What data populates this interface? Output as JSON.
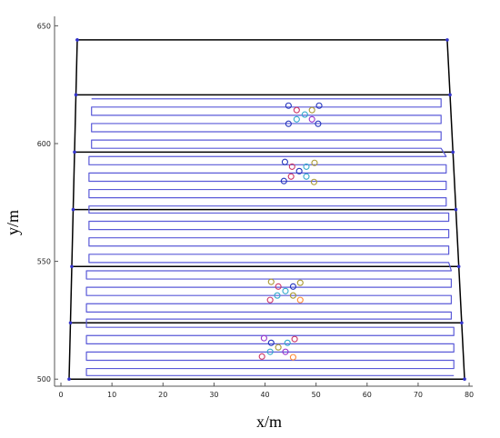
{
  "chart_data": {
    "type": "line",
    "xlabel": "x/m",
    "ylabel": "y/m",
    "xlim": [
      -1.25,
      80.7
    ],
    "ylim": [
      497,
      654
    ],
    "xticks": [
      0,
      10,
      20,
      30,
      40,
      50,
      60,
      70,
      80
    ],
    "yticks": [
      500,
      550,
      600,
      650
    ],
    "series": [
      {
        "kind": "line",
        "color": "#000000",
        "marker_color": "#3333cc",
        "x": [
          3.2,
          75.7,
          79.1,
          1.6,
          3.2
        ],
        "y": [
          644,
          644,
          500,
          500,
          644
        ]
      },
      {
        "kind": "line",
        "color": "#000000",
        "marker_color": "#3333cc",
        "x": [
          2.94,
          76.25
        ],
        "y": [
          620.7,
          620.7
        ]
      },
      {
        "kind": "line",
        "color": "#000000",
        "marker_color": "#3333cc",
        "x": [
          2.67,
          76.82
        ],
        "y": [
          596.4,
          596.4
        ]
      },
      {
        "kind": "line",
        "color": "#000000",
        "marker_color": "#3333cc",
        "x": [
          2.4,
          77.4
        ],
        "y": [
          572,
          572
        ]
      },
      {
        "kind": "line",
        "color": "#000000",
        "marker_color": "#3333cc",
        "x": [
          2.13,
          77.97
        ],
        "y": [
          547.8,
          547.8
        ]
      },
      {
        "kind": "line",
        "color": "#000000",
        "marker_color": "#3333cc",
        "x": [
          1.87,
          78.54
        ],
        "y": [
          523.9,
          523.9
        ]
      },
      {
        "kind": "line",
        "color": "#5a5ad8",
        "x": [
          6,
          74.5,
          74.5,
          6,
          6,
          74.5,
          74.5,
          6,
          6,
          74.5,
          74.5,
          6,
          6,
          74.5,
          75.5,
          5.5,
          5.5,
          75.5,
          75.5,
          5.5,
          5.5,
          75.5,
          75.5,
          5.5,
          5.5,
          75.5,
          75.5,
          5.5,
          5.5,
          76,
          76,
          5.5,
          5.5,
          76,
          76,
          5.5,
          5.5,
          76,
          76,
          5.5,
          5.5,
          76,
          76.5,
          5,
          5,
          76.5,
          76.5,
          5,
          5,
          76.5,
          76.5,
          5,
          5,
          76.5,
          76.5,
          5,
          5,
          77,
          77,
          5,
          5,
          77,
          77,
          5,
          5,
          77,
          77,
          5,
          5,
          77
        ],
        "y": [
          619,
          619,
          615.5,
          615.5,
          612,
          612,
          608.5,
          608.5,
          605,
          605,
          601.5,
          601.5,
          598,
          598,
          594.5,
          594.5,
          591,
          591,
          587.5,
          587.5,
          584,
          584,
          580.5,
          580.5,
          577,
          577,
          573.5,
          573.5,
          570.5,
          570.5,
          567,
          567,
          563.5,
          563.5,
          560,
          560,
          556.5,
          556.5,
          553,
          553,
          549.5,
          549.5,
          546,
          546,
          542.5,
          542.5,
          539,
          539,
          535.5,
          535.5,
          532,
          532,
          528.5,
          528.5,
          525.5,
          525.5,
          522,
          522,
          518.5,
          518.5,
          515,
          515,
          511.5,
          511.5,
          508,
          508,
          504.5,
          504.5,
          501.5,
          501.5
        ]
      },
      {
        "kind": "points",
        "x": [
          44.6,
          46.2,
          47.8,
          49.2,
          50.6,
          44.6,
          46.2,
          49.2,
          50.4,
          43.9,
          45.3,
          46.7,
          48.1,
          49.7,
          43.7,
          45.1,
          48.1,
          49.6,
          41.2,
          42.6,
          44.0,
          45.5,
          46.9,
          41.0,
          42.4,
          45.5,
          46.9,
          39.8,
          41.2,
          42.6,
          44.4,
          45.8,
          39.4,
          41.0,
          44.0,
          45.5
        ],
        "y": [
          616.1,
          614.2,
          612.3,
          614.2,
          616.1,
          608.4,
          610.3,
          610.3,
          608.4,
          592.2,
          590.2,
          588.3,
          590.2,
          591.8,
          584.1,
          586.0,
          586.0,
          583.7,
          541.3,
          539.3,
          537.4,
          539.3,
          540.9,
          533.6,
          535.5,
          535.5,
          533.6,
          517.4,
          515.4,
          513.5,
          515.4,
          517.0,
          509.6,
          511.6,
          511.6,
          509.3
        ],
        "colors": [
          "#2233bb",
          "#cc3366",
          "#33aacc",
          "#aa9933",
          "#2233bb",
          "#2233bb",
          "#33aacc",
          "#9933cc",
          "#2233bb",
          "#2233bb",
          "#cc3366",
          "#2233bb",
          "#33aacc",
          "#aa9933",
          "#2233bb",
          "#cc3366",
          "#33aacc",
          "#aa9933",
          "#aa9933",
          "#cc3366",
          "#33aacc",
          "#2233bb",
          "#aa9933",
          "#cc3366",
          "#33aacc",
          "#aa9933",
          "#ff8833",
          "#9933cc",
          "#2233bb",
          "#aa9933",
          "#33aacc",
          "#cc3366",
          "#cc3366",
          "#33aacc",
          "#9933cc",
          "#ff8833"
        ]
      }
    ]
  }
}
